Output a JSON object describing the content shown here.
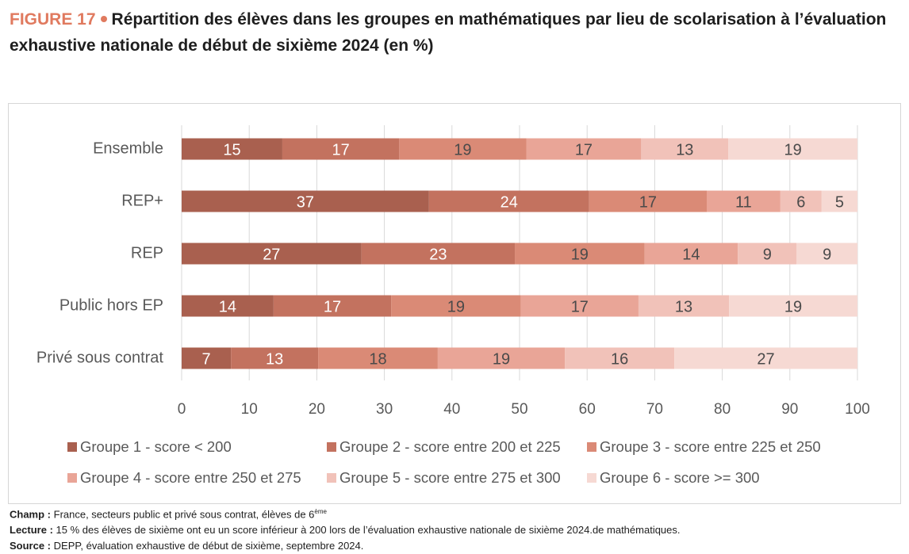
{
  "chart_data": {
    "type": "stacked_barh",
    "figure_label": "FIGURE 17",
    "title": "Répartition des élèves dans les groupes en mathématiques par lieu de scolarisation à l’évaluation exhaustive nationale de début de sixième 2024 (en %)",
    "categories": [
      "Ensemble",
      "REP+",
      "REP",
      "Public hors EP",
      "Privé sous contrat"
    ],
    "series": [
      {
        "name": "Groupe 1 - score < 200",
        "color": "#a9604f",
        "label_color": "#ffffff",
        "values": [
          14.9,
          36.6,
          26.6,
          13.6,
          7.3
        ],
        "value_labels": [
          "15",
          "37",
          "27",
          "14",
          "7"
        ]
      },
      {
        "name": "Groupe 2 - score entre 200 et 225",
        "color": "#c3725f",
        "label_color": "#ffffff",
        "values": [
          17.3,
          23.7,
          22.7,
          17.4,
          12.9
        ],
        "value_labels": [
          "17",
          "24",
          "23",
          "17",
          "13"
        ]
      },
      {
        "name": "Groupe 3 - score entre 225 et 250",
        "color": "#da8a76",
        "label_color": "#4a4a4a",
        "values": [
          18.8,
          17.4,
          19.2,
          19.2,
          17.7
        ],
        "value_labels": [
          "19",
          "17",
          "19",
          "19",
          "18"
        ]
      },
      {
        "name": "Groupe 4 - score entre 250 et 275",
        "color": "#e9a597",
        "label_color": "#4a4a4a",
        "values": [
          17.0,
          10.9,
          13.8,
          17.4,
          18.8
        ],
        "value_labels": [
          "17",
          "11",
          "14",
          "17",
          "19"
        ]
      },
      {
        "name": "Groupe 5 - score entre 275 et 300",
        "color": "#f1c2b9",
        "label_color": "#4a4a4a",
        "values": [
          12.9,
          6.1,
          8.7,
          13.4,
          16.2
        ],
        "value_labels": [
          "13",
          "6",
          "9",
          "13",
          "16"
        ]
      },
      {
        "name": "Groupe 6 - score >= 300",
        "color": "#f6d9d3",
        "label_color": "#4a4a4a",
        "values": [
          19.1,
          5.3,
          9.0,
          19.0,
          27.1
        ],
        "value_labels": [
          "19",
          "5",
          "9",
          "19",
          "27"
        ]
      }
    ],
    "xlim": [
      0,
      100
    ],
    "xticks": [
      0,
      10,
      20,
      30,
      40,
      50,
      60,
      70,
      80,
      90,
      100
    ],
    "grid": true,
    "notes": [
      {
        "label": "Champ :",
        "text": "France, secteurs public et privé sous contrat, élèves de 6",
        "sup": "ème"
      },
      {
        "label": "Lecture :",
        "text": "15 % des élèves de sixième ont eu un score inférieur à 200 lors de l’évaluation exhaustive nationale de sixième 2024.de mathématiques."
      },
      {
        "label": "Source :",
        "text": " DEPP, évaluation exhaustive de début de sixième, septembre 2024."
      }
    ]
  }
}
